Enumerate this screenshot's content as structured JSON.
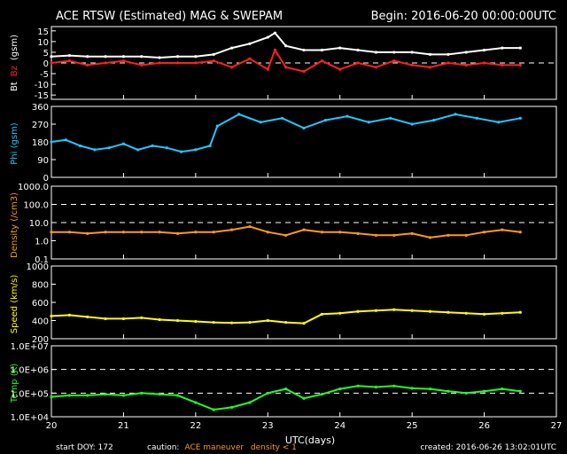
{
  "header": {
    "title": "ACE RTSW (Estimated) MAG & SWEPAM",
    "begin": "Begin: 2016-06-20 00:00:00UTC"
  },
  "footer": {
    "start": "start DOY: 172",
    "caution_label": "caution:",
    "caution_maneuver": "ACE maneuver",
    "caution_density": "density < 1",
    "created": "created: 2016-06-26 13:02:01UTC"
  },
  "colors": {
    "bt": "#ffffff",
    "bz": "#ff2020",
    "phi": "#20c8ff",
    "density": "#ff9a10",
    "speed": "#ffff00",
    "temp": "#20ff20",
    "caution_maneuver": "#ff9a10",
    "caution_density": "#ff9a10"
  },
  "chart_data": [
    {
      "type": "line",
      "ylabel_parts": [
        "Bt",
        "Bz",
        "(gsm)"
      ],
      "yticks": [
        "15",
        "10",
        "5",
        "0",
        "-5",
        "-10",
        "-15"
      ],
      "ylim": [
        -17,
        17
      ],
      "grid": "dashed line at 0",
      "series": [
        {
          "name": "Bt",
          "x": [
            20,
            20.25,
            20.5,
            20.75,
            21,
            21.25,
            21.5,
            21.75,
            22,
            22.25,
            22.5,
            22.75,
            23,
            23.1,
            23.25,
            23.5,
            23.75,
            24,
            24.25,
            24.5,
            24.75,
            25,
            25.25,
            25.5,
            25.75,
            26,
            26.25,
            26.5
          ],
          "values": [
            3,
            3.5,
            3,
            3,
            3,
            3,
            2.5,
            3,
            3,
            4,
            7,
            9,
            12,
            14,
            8,
            6,
            6,
            7,
            6,
            5,
            5,
            5,
            4,
            4,
            5,
            6,
            7,
            7
          ]
        },
        {
          "name": "Bz",
          "x": [
            20,
            20.25,
            20.5,
            20.75,
            21,
            21.25,
            21.5,
            21.75,
            22,
            22.25,
            22.5,
            22.75,
            23,
            23.1,
            23.25,
            23.5,
            23.75,
            24,
            24.25,
            24.5,
            24.75,
            25,
            25.25,
            25.5,
            25.75,
            26,
            26.25,
            26.5
          ],
          "values": [
            0,
            1,
            -1,
            0,
            1,
            -1,
            0,
            0,
            0,
            1,
            -2,
            2,
            -3,
            6,
            -2,
            -4,
            1,
            -3,
            0,
            -2,
            1,
            -1,
            -2,
            0,
            -1,
            0,
            -1,
            -1
          ]
        }
      ]
    },
    {
      "type": "scatter",
      "ylabel": "Phi (gsm)",
      "yticks": [
        "360",
        "270",
        "180",
        "90",
        "0"
      ],
      "ylim": [
        0,
        360
      ],
      "x": [
        20,
        20.2,
        20.4,
        20.6,
        20.8,
        21,
        21.2,
        21.4,
        21.6,
        21.8,
        22,
        22.2,
        22.3,
        22.6,
        22.9,
        23.2,
        23.5,
        23.8,
        24.1,
        24.4,
        24.7,
        25,
        25.3,
        25.6,
        25.9,
        26.2,
        26.5
      ],
      "values": [
        180,
        190,
        160,
        140,
        150,
        170,
        140,
        160,
        150,
        130,
        140,
        160,
        260,
        320,
        280,
        300,
        250,
        290,
        310,
        280,
        300,
        270,
        290,
        320,
        300,
        280,
        300
      ]
    },
    {
      "type": "scatter",
      "ylabel": "Density (/cm3)",
      "scale": "log",
      "yticks": [
        "1000.0",
        "100.0",
        "10.0",
        "1.0",
        "0.1"
      ],
      "ylim": [
        0.1,
        1000
      ],
      "x": [
        20,
        20.25,
        20.5,
        20.75,
        21,
        21.25,
        21.5,
        21.75,
        22,
        22.25,
        22.5,
        22.75,
        23,
        23.25,
        23.5,
        23.75,
        24,
        24.25,
        24.5,
        24.75,
        25,
        25.25,
        25.5,
        25.75,
        26,
        26.25,
        26.5
      ],
      "values": [
        3,
        3,
        2.5,
        3,
        3,
        3,
        3,
        2.5,
        3,
        3,
        4,
        6,
        3,
        2,
        4,
        3,
        3,
        2.5,
        2,
        2,
        2.5,
        1.5,
        2,
        2,
        3,
        4,
        3
      ]
    },
    {
      "type": "scatter",
      "ylabel": "Speed (km/s)",
      "yticks": [
        "1000",
        "800",
        "600",
        "400",
        "200"
      ],
      "ylim": [
        200,
        1000
      ],
      "x": [
        20,
        20.25,
        20.5,
        20.75,
        21,
        21.25,
        21.5,
        21.75,
        22,
        22.25,
        22.5,
        22.75,
        23,
        23.25,
        23.5,
        23.75,
        24,
        24.25,
        24.5,
        24.75,
        25,
        25.25,
        25.5,
        25.75,
        26,
        26.25,
        26.5
      ],
      "values": [
        450,
        460,
        440,
        420,
        420,
        430,
        410,
        400,
        390,
        380,
        375,
        380,
        400,
        380,
        370,
        470,
        480,
        500,
        510,
        520,
        510,
        500,
        490,
        480,
        470,
        480,
        490
      ]
    },
    {
      "type": "scatter",
      "ylabel": "Temp (K)",
      "scale": "log",
      "yticks": [
        "1.0E+07",
        "1.0E+06",
        "1.0E+05",
        "1.0E+04"
      ],
      "ylim": [
        10000,
        10000000
      ],
      "x": [
        20,
        20.25,
        20.5,
        20.75,
        21,
        21.25,
        21.5,
        21.75,
        22,
        22.25,
        22.5,
        22.75,
        23,
        23.25,
        23.5,
        23.75,
        24,
        24.25,
        24.5,
        24.75,
        25,
        25.25,
        25.5,
        25.75,
        26,
        26.25,
        26.5
      ],
      "values": [
        70000,
        80000,
        80000,
        90000,
        80000,
        100000,
        90000,
        80000,
        40000,
        20000,
        25000,
        40000,
        100000,
        150000,
        60000,
        90000,
        150000,
        200000,
        180000,
        200000,
        160000,
        150000,
        120000,
        100000,
        120000,
        150000,
        120000
      ]
    }
  ],
  "xaxis": {
    "label": "UTC(days)",
    "ticks": [
      "20",
      "21",
      "22",
      "23",
      "24",
      "25",
      "26",
      "27"
    ],
    "xlim": [
      20,
      27
    ]
  }
}
